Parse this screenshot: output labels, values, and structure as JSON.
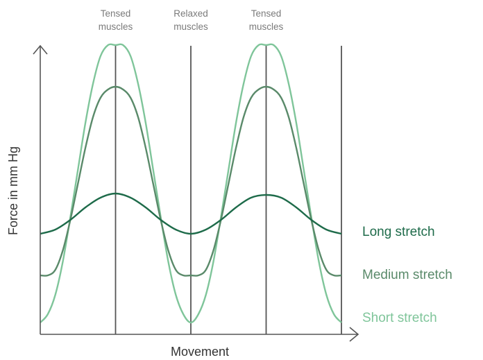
{
  "chart_data": {
    "type": "line",
    "title": "",
    "xlabel": "Movement",
    "ylabel": "Force in mm Hg",
    "xlim": [
      0,
      1
    ],
    "ylim": [
      0,
      1
    ],
    "grid": false,
    "phase_labels": [
      {
        "lines": [
          "Tensed",
          "muscles"
        ],
        "x": 0.25
      },
      {
        "lines": [
          "Relaxed",
          "muscles"
        ],
        "x": 0.5
      },
      {
        "lines": [
          "Tensed",
          "muscles"
        ],
        "x": 0.75
      }
    ],
    "vertical_lines": [
      0.25,
      0.5,
      0.75,
      1.0
    ],
    "series": [
      {
        "name": "Long stretch",
        "color": "#1e6b4a",
        "x": [
          0,
          0.05,
          0.1,
          0.15,
          0.2,
          0.25,
          0.3,
          0.35,
          0.4,
          0.45,
          0.5,
          0.55,
          0.6,
          0.65,
          0.7,
          0.75,
          0.8,
          0.85,
          0.9,
          0.95,
          1.0
        ],
        "y": [
          0.32,
          0.335,
          0.37,
          0.415,
          0.45,
          0.465,
          0.45,
          0.415,
          0.37,
          0.335,
          0.32,
          0.335,
          0.37,
          0.415,
          0.45,
          0.46,
          0.45,
          0.415,
          0.37,
          0.335,
          0.32
        ]
      },
      {
        "name": "Medium stretch",
        "color": "#5a8a6a",
        "x": [
          0,
          0.025,
          0.05,
          0.075,
          0.1,
          0.125,
          0.15,
          0.175,
          0.2,
          0.225,
          0.25,
          0.275,
          0.3,
          0.325,
          0.35,
          0.375,
          0.4,
          0.425,
          0.45,
          0.475,
          0.5,
          0.525,
          0.55,
          0.575,
          0.6,
          0.625,
          0.65,
          0.675,
          0.7,
          0.725,
          0.75,
          0.775,
          0.8,
          0.825,
          0.85,
          0.875,
          0.9,
          0.925,
          0.95,
          0.975,
          1.0
        ],
        "y": [
          0.17,
          0.17,
          0.19,
          0.26,
          0.37,
          0.5,
          0.63,
          0.74,
          0.81,
          0.84,
          0.85,
          0.84,
          0.81,
          0.74,
          0.63,
          0.5,
          0.37,
          0.26,
          0.19,
          0.17,
          0.17,
          0.17,
          0.19,
          0.26,
          0.37,
          0.5,
          0.63,
          0.74,
          0.81,
          0.84,
          0.85,
          0.84,
          0.81,
          0.74,
          0.63,
          0.5,
          0.37,
          0.26,
          0.19,
          0.17,
          0.17
        ]
      },
      {
        "name": "Short stretch",
        "color": "#7fc59a",
        "x": [
          0,
          0.025,
          0.05,
          0.075,
          0.1,
          0.125,
          0.15,
          0.175,
          0.2,
          0.225,
          0.25,
          0.275,
          0.3,
          0.325,
          0.35,
          0.375,
          0.4,
          0.425,
          0.45,
          0.475,
          0.5,
          0.525,
          0.55,
          0.575,
          0.6,
          0.625,
          0.65,
          0.675,
          0.7,
          0.725,
          0.75,
          0.775,
          0.8,
          0.825,
          0.85,
          0.875,
          0.9,
          0.925,
          0.95,
          0.975,
          1.0
        ],
        "y": [
          0.0,
          0.03,
          0.1,
          0.22,
          0.38,
          0.55,
          0.72,
          0.86,
          0.96,
          1.0,
          1.0,
          1.0,
          0.96,
          0.86,
          0.72,
          0.55,
          0.38,
          0.22,
          0.1,
          0.03,
          0.0,
          0.03,
          0.1,
          0.22,
          0.38,
          0.55,
          0.72,
          0.86,
          0.96,
          1.0,
          1.0,
          1.0,
          0.96,
          0.86,
          0.72,
          0.55,
          0.38,
          0.22,
          0.1,
          0.03,
          0.0
        ]
      }
    ],
    "axis_color": "#555555"
  }
}
